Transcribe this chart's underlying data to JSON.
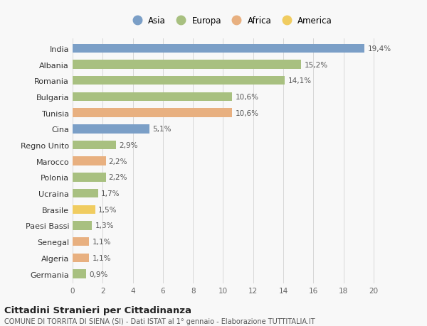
{
  "countries": [
    "India",
    "Albania",
    "Romania",
    "Bulgaria",
    "Tunisia",
    "Cina",
    "Regno Unito",
    "Marocco",
    "Polonia",
    "Ucraina",
    "Brasile",
    "Paesi Bassi",
    "Senegal",
    "Algeria",
    "Germania"
  ],
  "values": [
    19.4,
    15.2,
    14.1,
    10.6,
    10.6,
    5.1,
    2.9,
    2.2,
    2.2,
    1.7,
    1.5,
    1.3,
    1.1,
    1.1,
    0.9
  ],
  "labels": [
    "19,4%",
    "15,2%",
    "14,1%",
    "10,6%",
    "10,6%",
    "5,1%",
    "2,9%",
    "2,2%",
    "2,2%",
    "1,7%",
    "1,5%",
    "1,3%",
    "1,1%",
    "1,1%",
    "0,9%"
  ],
  "continents": [
    "Asia",
    "Europa",
    "Europa",
    "Europa",
    "Africa",
    "Asia",
    "Europa",
    "Africa",
    "Europa",
    "Europa",
    "America",
    "Europa",
    "Africa",
    "Africa",
    "Europa"
  ],
  "colors": {
    "Asia": "#7b9fc7",
    "Europa": "#a8c080",
    "Africa": "#e8b080",
    "America": "#f0cc60"
  },
  "legend_order": [
    "Asia",
    "Europa",
    "Africa",
    "America"
  ],
  "title": "Cittadini Stranieri per Cittadinanza",
  "subtitle": "COMUNE DI TORRITA DI SIENA (SI) - Dati ISTAT al 1° gennaio - Elaborazione TUTTITALIA.IT",
  "xlim": [
    0,
    21
  ],
  "xticks": [
    0,
    2,
    4,
    6,
    8,
    10,
    12,
    14,
    16,
    18,
    20
  ],
  "background_color": "#f8f8f8",
  "grid_color": "#d8d8d8"
}
